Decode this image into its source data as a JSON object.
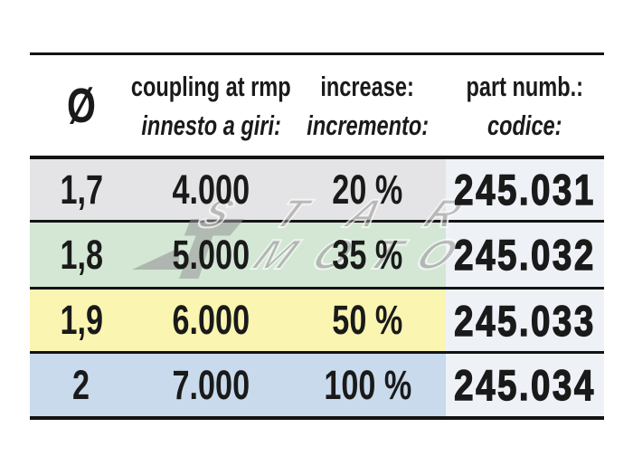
{
  "header": {
    "diameter_symbol": "Ø",
    "coupling_line1": "coupling at rmp",
    "coupling_line2": "innesto a giri:",
    "increase_line1": "increase:",
    "increase_line2": "incremento:",
    "part_line1": "part numb.:",
    "part_line2": "codice:"
  },
  "rows": [
    {
      "diameter": "1,7",
      "coupling_rpm": "4.000",
      "increase": "20 %",
      "part_number": "245.031"
    },
    {
      "diameter": "1,8",
      "coupling_rpm": "5.000",
      "increase": "35 %",
      "part_number": "245.032"
    },
    {
      "diameter": "1,9",
      "coupling_rpm": "6.000",
      "increase": "50 %",
      "part_number": "245.033"
    },
    {
      "diameter": "2",
      "coupling_rpm": "7.000",
      "increase": "100 %",
      "part_number": "245.034"
    }
  ],
  "watermark": {
    "line1": "STAR",
    "line2": "MOTO"
  },
  "colors": {
    "row_gray": "#e4e4e6",
    "row_green": "#d3e7d4",
    "row_yellow": "#fbf5b2",
    "row_blue": "#c8daec",
    "part_column": "#eef2f7",
    "line": "#141414",
    "text": "#1a1a1a",
    "watermark_gray": "#949494"
  }
}
